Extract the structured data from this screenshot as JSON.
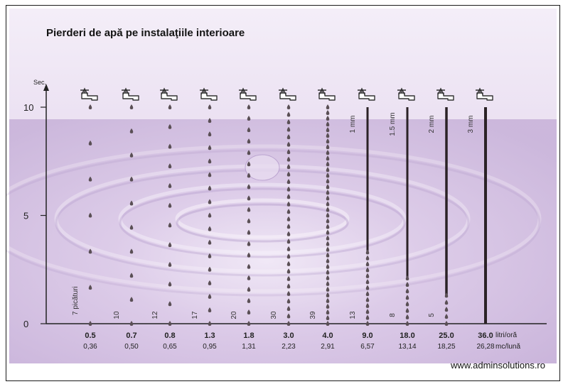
{
  "watermark": "www.adminsolutions.ro",
  "colors": {
    "bg_light": "#ede3f4",
    "bg_mid": "#cbb6dd",
    "drop": "#5a4f55",
    "stream": "#2b2226",
    "axis": "#222222"
  },
  "icons": {
    "tap": "faucet-icon",
    "drop": "water-drop-icon"
  },
  "chart_data": {
    "type": "scatter",
    "title": "Pierderi de apă pe instalaţiile interioare",
    "ylabel": "Sec.",
    "ylim": [
      0,
      10
    ],
    "yticks": [
      0,
      5,
      10
    ],
    "x_row1_label": "litri/oră",
    "x_row2_label": "mc/lună",
    "first_count_label": "7 picături",
    "series": [
      {
        "litri_ora": "0.5",
        "mc_luna": "0,36",
        "count": 7,
        "label": "7 picături"
      },
      {
        "litri_ora": "0.7",
        "mc_luna": "0,50",
        "count": 10,
        "label": "10"
      },
      {
        "litri_ora": "0.8",
        "mc_luna": "0,65",
        "count": 12,
        "label": "12"
      },
      {
        "litri_ora": "1.3",
        "mc_luna": "0,95",
        "count": 17,
        "label": "17"
      },
      {
        "litri_ora": "1.8",
        "mc_luna": "1,31",
        "count": 20,
        "label": "20"
      },
      {
        "litri_ora": "3.0",
        "mc_luna": "2,23",
        "count": 30,
        "label": "30"
      },
      {
        "litri_ora": "4.0",
        "mc_luna": "2,91",
        "count": 39,
        "label": "39"
      },
      {
        "litri_ora": "9.0",
        "mc_luna": "6,57",
        "count": 13,
        "label": "13",
        "stream": "1 mm",
        "stream_from": 3.3
      },
      {
        "litri_ora": "18.0",
        "mc_luna": "13,14",
        "count": 8,
        "label": "8",
        "stream": "1.5 mm",
        "stream_from": 2.1
      },
      {
        "litri_ora": "25.0",
        "mc_luna": "18,25",
        "count": 5,
        "label": "5",
        "stream": "2 mm",
        "stream_from": 1.3
      },
      {
        "litri_ora": "36.0",
        "mc_luna": "26,28",
        "count": 0,
        "label": "",
        "stream": "3 mm",
        "stream_from": 0
      }
    ]
  }
}
